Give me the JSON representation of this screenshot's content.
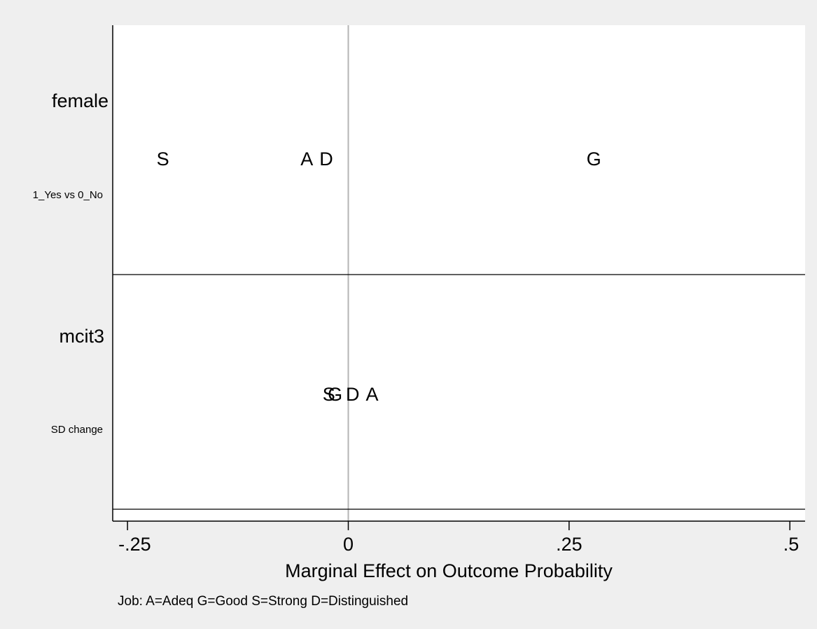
{
  "chart_data": {
    "type": "scatter",
    "xlabel": "Marginal Effect on Outcome Probability",
    "note": "Job: A=Adeq G=Good S=Strong D=Distinguished",
    "xlim": [
      -0.265,
      0.515
    ],
    "x_ticks": [
      {
        "value": -0.25,
        "label": "-.25"
      },
      {
        "value": 0,
        "label": "0"
      },
      {
        "value": 0.25,
        "label": ".25"
      },
      {
        "value": 0.5,
        "label": ".5"
      }
    ],
    "reference_line_x": 0,
    "grid": false,
    "panels": [
      {
        "variable": "female",
        "change": "1_Yes vs 0_No",
        "points": [
          {
            "marker": "S",
            "x": -0.21
          },
          {
            "marker": "A",
            "x": -0.047
          },
          {
            "marker": "D",
            "x": -0.025
          },
          {
            "marker": "G",
            "x": 0.278
          }
        ]
      },
      {
        "variable": "mcit3",
        "change": "SD change",
        "points": [
          {
            "marker": "S",
            "x": -0.022
          },
          {
            "marker": "G",
            "x": -0.015
          },
          {
            "marker": "D",
            "x": 0.005
          },
          {
            "marker": "A",
            "x": 0.027
          }
        ]
      }
    ]
  },
  "colors": {
    "background": "#efefef",
    "plot_area": "#ffffff",
    "reference_line": "#b4b4b4",
    "axis": "#000000",
    "text": "#000000"
  }
}
